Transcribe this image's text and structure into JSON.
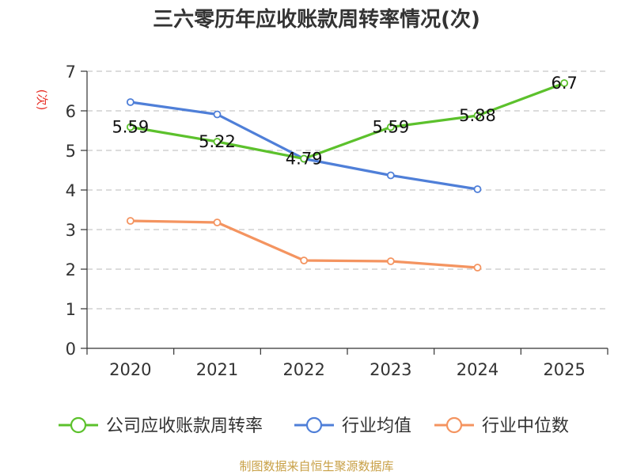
{
  "chart_data": {
    "type": "line",
    "title": "三六零历年应收账款周转率情况(次)",
    "ylabel": "(次)",
    "xlabel": "",
    "categories": [
      "2020",
      "2021",
      "2022",
      "2023",
      "2024",
      "2025"
    ],
    "ylim": [
      0,
      7
    ],
    "yticks": [
      "0",
      "1",
      "2",
      "3",
      "4",
      "5",
      "6",
      "7"
    ],
    "grid": true,
    "legend_position": "bottom",
    "series": [
      {
        "name": "公司应收账款周转率",
        "color": "#5cc12c",
        "values": [
          5.59,
          5.22,
          4.79,
          5.59,
          5.88,
          6.7
        ],
        "labels": [
          "5.59",
          "5.22",
          "4.79",
          "5.59",
          "5.88",
          "6.7"
        ]
      },
      {
        "name": "行业均值",
        "color": "#4f7fd8",
        "values": [
          6.22,
          5.91,
          4.79,
          4.37,
          4.02,
          null
        ]
      },
      {
        "name": "行业中位数",
        "color": "#f49460",
        "values": [
          3.22,
          3.18,
          2.22,
          2.2,
          2.04,
          null
        ]
      }
    ],
    "source": "制图数据来自恒生聚源数据库"
  }
}
